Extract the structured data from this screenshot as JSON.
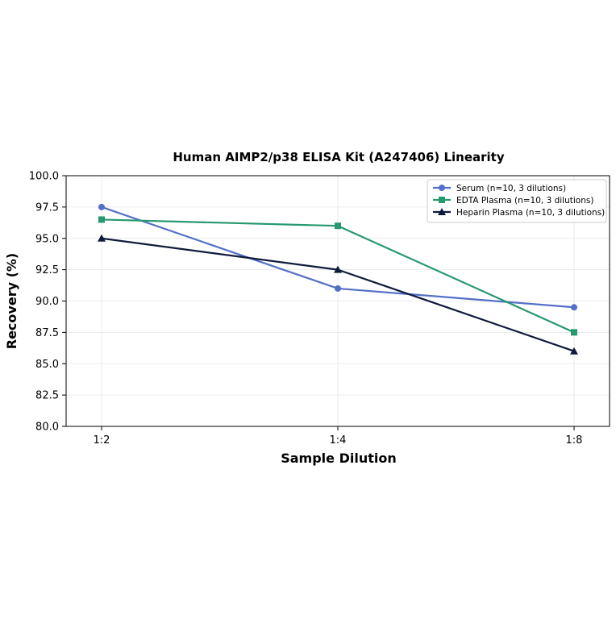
{
  "chart_data": {
    "type": "line",
    "title": "Human AIMP2/p38 ELISA Kit (A247406) Linearity",
    "xlabel": "Sample Dilution",
    "ylabel": "Recovery (%)",
    "categories": [
      "1:2",
      "1:4",
      "1:8"
    ],
    "ylim": [
      80.0,
      100.0
    ],
    "yticks": [
      "80.0",
      "82.5",
      "85.0",
      "87.5",
      "90.0",
      "92.5",
      "95.0",
      "97.5",
      "100.0"
    ],
    "grid": true,
    "legend_position": "top-right",
    "series": [
      {
        "name": "Serum (n=10, 3 dilutions)",
        "values": [
          97.5,
          91.0,
          89.5
        ],
        "color": "#5470c6",
        "marker": "circle"
      },
      {
        "name": "EDTA Plasma (n=10, 3 dilutions)",
        "values": [
          96.5,
          96.0,
          87.5
        ],
        "color": "#26996e",
        "marker": "square"
      },
      {
        "name": "Heparin Plasma (n=10, 3 dilutions)",
        "values": [
          95.0,
          92.5,
          86.0
        ],
        "color": "#0f1a3c",
        "marker": "triangle"
      }
    ]
  }
}
